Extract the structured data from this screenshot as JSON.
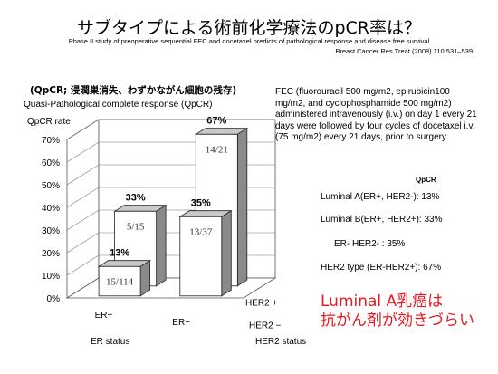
{
  "title": "サブタイプによる術前化学療法のpCR率は？",
  "subtitle_line1": "Phase II study of preoperative sequential FEC and docetaxel predicts of pathological response and disease free survival",
  "subtitle_line2": "Breast Cancer Res Treat (2008) 110:531–539",
  "qpcr_note": "(QpCR; 浸潤巣消失、わずかながん細胞の残存)",
  "qpcr_description": "Quasi-Pathological complete response (QpCR)",
  "fec_description": "FEC (fluorouracil 500 mg/m2, epirubicin100 mg/m2, and cyclophosphamide 500 mg/m2) administered intravenously (i.v.) on day 1 every 21 days were followed by four cycles of docetaxel i.v. (75 mg/m2) every 21 days, prior to surgery.",
  "qpcr_column_header": "QpCR",
  "subtype_rates": [
    "Luminal A(ER+, HER2-): 13%",
    "Luminal B(ER+, HER2+): 33%",
    "ER- HER2-            : 35%",
    "HER2 type (ER-HER2+): 67%"
  ],
  "conclusion_line1": "Luminal A乳癌は",
  "conclusion_line2": "抗がん剤が効きづらい",
  "colors": {
    "conclusion": "#e8171f",
    "bar_front": "#ffffff",
    "bar_side": "#8a8a8a",
    "bar_top": "#c9c9c9"
  },
  "chart_data": {
    "type": "bar",
    "title": "",
    "ylabel": "QpCR rate",
    "x_axis_label": "ER status",
    "z_axis_label": "HER2 status",
    "x_categories": [
      "ER+",
      "ER−"
    ],
    "z_categories": [
      "HER2 −",
      "HER2 +"
    ],
    "ylim": [
      0,
      70
    ],
    "yticks": [
      "0%",
      "10%",
      "20%",
      "30%",
      "40%",
      "50%",
      "60%",
      "70%"
    ],
    "grid": true,
    "bars": [
      {
        "er": "ER+",
        "her2": "HER2 −",
        "value": 13,
        "value_label": "13%",
        "count_label": "15/114"
      },
      {
        "er": "ER+",
        "her2": "HER2 +",
        "value": 33,
        "value_label": "33%",
        "count_label": "5/15"
      },
      {
        "er": "ER−",
        "her2": "HER2 −",
        "value": 35,
        "value_label": "35%",
        "count_label": "13/37"
      },
      {
        "er": "ER−",
        "her2": "HER2 +",
        "value": 67,
        "value_label": "67%",
        "count_label": "14/21"
      }
    ]
  }
}
